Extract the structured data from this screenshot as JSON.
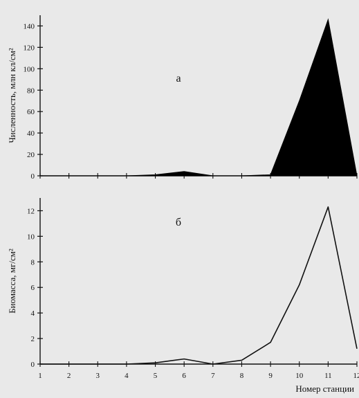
{
  "chart_data": [
    {
      "type": "area",
      "panel_label": "а",
      "title": "",
      "xlabel": "",
      "ylabel": "Численность, млн кл/см²",
      "x": [
        1,
        2,
        3,
        4,
        5,
        6,
        7,
        8,
        9,
        10,
        11,
        12
      ],
      "values": [
        0,
        0,
        0,
        0,
        1,
        4,
        0,
        0,
        1,
        70,
        146,
        0
      ],
      "ylim": [
        0,
        150
      ],
      "yticks": [
        0,
        20,
        40,
        60,
        80,
        100,
        120,
        140
      ],
      "fill_color": "#000000",
      "grid": false
    },
    {
      "type": "line",
      "panel_label": "б",
      "title": "",
      "xlabel": "Номер станции",
      "ylabel": "Биомасса, мг/см²",
      "x": [
        1,
        2,
        3,
        4,
        5,
        6,
        7,
        8,
        9,
        10,
        11,
        12
      ],
      "x_tick_labels": [
        "1",
        "2",
        "3",
        "4",
        "5",
        "6",
        "7",
        "8",
        "9",
        "10",
        "11",
        "12"
      ],
      "values": [
        0,
        0,
        0,
        0,
        0.1,
        0.4,
        0,
        0.3,
        1.7,
        6.2,
        12.3,
        1.2
      ],
      "ylim": [
        0,
        13
      ],
      "yticks": [
        0,
        2,
        4,
        6,
        8,
        10,
        12
      ],
      "line_color": "#111111",
      "grid": false
    }
  ]
}
